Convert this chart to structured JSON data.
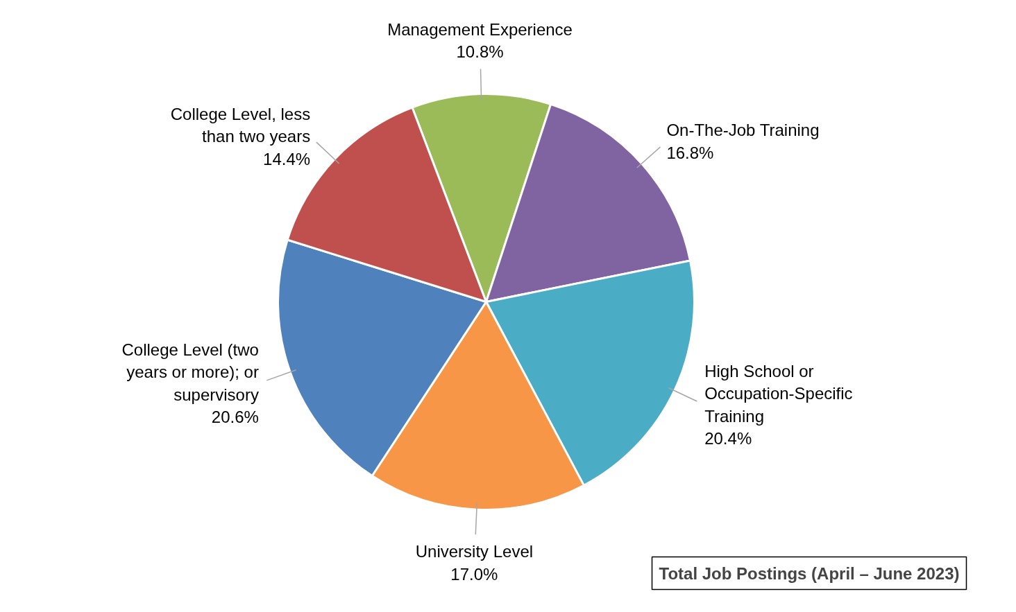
{
  "chart_data": {
    "type": "pie",
    "categories": [
      "Management Experience",
      "On-The-Job Training",
      "High School or Occupation-Specific Training",
      "University Level",
      "College Level (two years or more); or supervisory",
      "College Level, less than two years"
    ],
    "values": [
      10.8,
      16.8,
      20.4,
      17.0,
      20.6,
      14.4
    ],
    "value_labels": [
      "10.8%",
      "16.8%",
      "20.4%",
      "17.0%",
      "20.6%",
      "14.4%"
    ],
    "colors": [
      "#9bbb59",
      "#8064a2",
      "#4bacc6",
      "#f79646",
      "#4f81bd",
      "#c0504d"
    ],
    "annotations": [
      "Total Job Postings (April – June 2023)"
    ]
  }
}
